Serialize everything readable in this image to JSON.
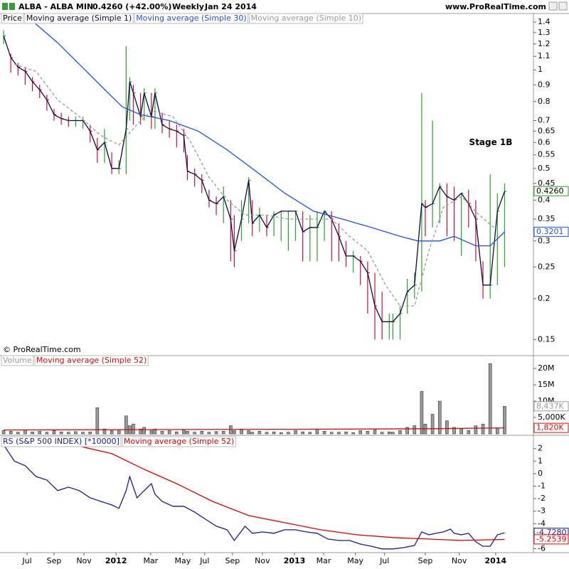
{
  "header": {
    "title": "ALBA - ALBA MIN",
    "quote": "0.4260 (+42.00%)",
    "period": "Weekly",
    "date": "Jan 24 2014",
    "site": "www.ProRealTime.com"
  },
  "copyright": "© ProRealTime.com",
  "chart_data": [
    {
      "type": "ohlc",
      "log_scale": true,
      "annotation": "Stage 1B",
      "up_color": "#2e9e2e",
      "down_color": "#c0103a",
      "ylim": [
        0.138,
        1.45
      ],
      "yticks": [
        0.15,
        0.2,
        0.25,
        0.3,
        0.35,
        0.4,
        0.45,
        0.5,
        0.55,
        0.6,
        0.65,
        0.7,
        0.8,
        0.9,
        1,
        1.1,
        1.2,
        1.3,
        1.4
      ],
      "series": [
        {
          "name": "Price",
          "color": "#000000",
          "last_label": "0.4260",
          "x": [
            0,
            2,
            4,
            6,
            8,
            10,
            12,
            14,
            16,
            18,
            20,
            22,
            24,
            26,
            28,
            30,
            32,
            34,
            35,
            36,
            38,
            39,
            41,
            42,
            44,
            46,
            48,
            50,
            51,
            53,
            55,
            57,
            59,
            61,
            63,
            64,
            66,
            68,
            69,
            71,
            73,
            75,
            77,
            79,
            81,
            83,
            85,
            87,
            89,
            91,
            93,
            95,
            97,
            99,
            101,
            103,
            105,
            107,
            108,
            110,
            112,
            114,
            116,
            117,
            119,
            121,
            123,
            125,
            127,
            129,
            131,
            133,
            135,
            137,
            139
          ],
          "high": [
            1.32,
            1.12,
            1.05,
            1.02,
            0.95,
            0.9,
            0.84,
            0.76,
            0.74,
            0.72,
            0.72,
            0.72,
            0.68,
            0.62,
            0.66,
            0.56,
            0.53,
            1.18,
            0.95,
            0.9,
            0.85,
            0.88,
            0.85,
            0.88,
            0.74,
            0.7,
            0.68,
            0.66,
            0.55,
            0.5,
            0.48,
            0.43,
            0.41,
            0.44,
            0.4,
            0.36,
            0.4,
            0.47,
            0.4,
            0.38,
            0.36,
            0.37,
            0.37,
            0.37,
            0.37,
            0.37,
            0.36,
            0.37,
            0.37,
            0.37,
            0.34,
            0.3,
            0.28,
            0.27,
            0.26,
            0.24,
            0.21,
            0.18,
            0.18,
            0.19,
            0.23,
            0.24,
            0.85,
            0.4,
            0.7,
            0.45,
            0.45,
            0.44,
            0.42,
            0.43,
            0.4,
            0.26,
            0.48,
            0.42,
            0.45
          ],
          "low": [
            1.2,
            0.98,
            0.96,
            0.9,
            0.86,
            0.82,
            0.75,
            0.7,
            0.68,
            0.67,
            0.67,
            0.66,
            0.6,
            0.52,
            0.52,
            0.48,
            0.48,
            0.48,
            0.7,
            0.68,
            0.68,
            0.7,
            0.66,
            0.66,
            0.64,
            0.62,
            0.58,
            0.56,
            0.46,
            0.44,
            0.42,
            0.38,
            0.36,
            0.34,
            0.26,
            0.25,
            0.3,
            0.34,
            0.31,
            0.32,
            0.31,
            0.31,
            0.3,
            0.28,
            0.3,
            0.26,
            0.26,
            0.26,
            0.3,
            0.26,
            0.26,
            0.25,
            0.24,
            0.22,
            0.18,
            0.15,
            0.15,
            0.15,
            0.15,
            0.15,
            0.18,
            0.2,
            0.21,
            0.31,
            0.33,
            0.34,
            0.31,
            0.3,
            0.27,
            0.33,
            0.26,
            0.2,
            0.2,
            0.22,
            0.25
          ],
          "values": [
            1.27,
            1.09,
            1.02,
            0.99,
            0.92,
            0.87,
            0.81,
            0.73,
            0.71,
            0.7,
            0.7,
            0.7,
            0.65,
            0.57,
            0.6,
            0.5,
            0.5,
            0.66,
            0.92,
            0.85,
            0.72,
            0.85,
            0.72,
            0.85,
            0.68,
            0.66,
            0.65,
            0.63,
            0.49,
            0.48,
            0.46,
            0.4,
            0.39,
            0.41,
            0.35,
            0.28,
            0.35,
            0.46,
            0.34,
            0.36,
            0.33,
            0.36,
            0.37,
            0.37,
            0.37,
            0.32,
            0.33,
            0.33,
            0.37,
            0.35,
            0.31,
            0.27,
            0.27,
            0.26,
            0.24,
            0.19,
            0.17,
            0.17,
            0.17,
            0.18,
            0.21,
            0.22,
            0.39,
            0.38,
            0.39,
            0.44,
            0.41,
            0.4,
            0.42,
            0.39,
            0.35,
            0.22,
            0.22,
            0.37,
            0.426
          ]
        },
        {
          "name": "Moving average (Simple 1)",
          "color": "#0a0a40"
        },
        {
          "name": "Moving average (Simple 30)",
          "color": "#2150e0",
          "last_label": "0.3201",
          "x": [
            8,
            15,
            23,
            29,
            33,
            38,
            46,
            54,
            62,
            70,
            78,
            86,
            94,
            102,
            110,
            115,
            121,
            125,
            131,
            135,
            139
          ],
          "values": [
            1.41,
            1.21,
            0.99,
            0.85,
            0.77,
            0.73,
            0.7,
            0.65,
            0.57,
            0.49,
            0.42,
            0.37,
            0.35,
            0.33,
            0.31,
            0.3,
            0.3,
            0.31,
            0.29,
            0.29,
            0.3201
          ]
        },
        {
          "name": "Moving average (Simple 10)",
          "color": "#9a9a9a",
          "dashed": true,
          "x": [
            3,
            9,
            15,
            21,
            27,
            32,
            37,
            41,
            47,
            52,
            57,
            62,
            67,
            73,
            79,
            85,
            91,
            96,
            101,
            106,
            110,
            114,
            118,
            122,
            127,
            132,
            136
          ],
          "values": [
            1.04,
            0.99,
            0.81,
            0.72,
            0.63,
            0.59,
            0.68,
            0.75,
            0.72,
            0.6,
            0.47,
            0.4,
            0.36,
            0.36,
            0.35,
            0.35,
            0.35,
            0.31,
            0.28,
            0.22,
            0.19,
            0.19,
            0.28,
            0.38,
            0.41,
            0.36,
            0.33
          ]
        }
      ]
    },
    {
      "type": "bar",
      "ylim": [
        0,
        23300000
      ],
      "yticks": [
        {
          "value": 5000000,
          "label": "5,000K"
        },
        {
          "value": 10000000,
          "label": "10M"
        },
        {
          "value": 15000000,
          "label": "15M"
        },
        {
          "value": 20000000,
          "label": "20M"
        }
      ],
      "series": [
        {
          "name": "Volume",
          "color": "#9a9a9a",
          "last_label": "8,437K",
          "values": [
            1000000,
            800000,
            500000,
            1200000,
            600000,
            800000,
            500000,
            1000000,
            600000,
            500000,
            700000,
            500000,
            600000,
            8000000,
            1500000,
            1000000,
            1200000,
            5500000,
            2500000,
            3000000,
            1500000,
            2000000,
            1000000,
            1500000,
            800000,
            1000000,
            600000,
            1200000,
            800000,
            500000,
            800000,
            500000,
            700000,
            800000,
            2500000,
            1000000,
            1500000,
            1000000,
            500000,
            800000,
            500000,
            600000,
            400000,
            500000,
            1000000,
            600000,
            500000,
            1500000,
            800000,
            500000,
            500000,
            600000,
            400000,
            1000000,
            800000,
            1200000,
            500000,
            600000,
            500000,
            1000000,
            2000000,
            2500000,
            13000000,
            3000000,
            6000000,
            10000000,
            4000000,
            2000000,
            1500000,
            1000000,
            2500000,
            3000000,
            21500000,
            1800000,
            8437000
          ]
        },
        {
          "name": "Moving average (Simple 52)",
          "color": "#d01010",
          "last_label": "1,820K",
          "x": [
            0,
            40,
            80,
            120,
            139
          ],
          "values": [
            1200000,
            1300000,
            1400000,
            1600000,
            1820000
          ]
        }
      ]
    },
    {
      "type": "line",
      "ylim": [
        -6.2,
        2.95
      ],
      "yticks": [
        2,
        1,
        0,
        -1,
        -2,
        -3,
        -4,
        -5,
        -6
      ],
      "xlim": [
        -1,
        147
      ],
      "xticks": [
        {
          "value": 6.5,
          "label": "Jul"
        },
        {
          "value": 14,
          "label": "Sep"
        },
        {
          "value": 22.3,
          "label": "Nov"
        },
        {
          "value": 31.2,
          "label": "2012"
        },
        {
          "value": 40.8,
          "label": "Mar"
        },
        {
          "value": 49.7,
          "label": "May"
        },
        {
          "value": 55.8,
          "label": "Jul"
        },
        {
          "value": 63.5,
          "label": "Sep"
        },
        {
          "value": 71.8,
          "label": "Nov"
        },
        {
          "value": 80.7,
          "label": "2013"
        },
        {
          "value": 88.8,
          "label": "Mar"
        },
        {
          "value": 97.6,
          "label": "May"
        },
        {
          "value": 105.7,
          "label": "Jul"
        },
        {
          "value": 117,
          "label": "Sep"
        },
        {
          "value": 126.4,
          "label": "Nov"
        },
        {
          "value": 136.5,
          "label": "2014"
        }
      ],
      "series": [
        {
          "name": "RS (S&P 500 INDEX) [*10000]",
          "color": "#1a1a8c",
          "last_label": "-4.7280",
          "x": [
            0,
            3,
            6,
            9,
            12,
            15,
            18,
            21,
            24,
            27,
            30,
            32,
            34,
            35,
            37,
            39,
            41,
            42,
            44,
            47,
            50,
            53,
            56,
            59,
            62,
            64,
            67,
            69,
            72,
            75,
            78,
            81,
            84,
            87,
            90,
            93,
            96,
            99,
            102,
            105,
            108,
            111,
            114,
            116,
            118,
            120,
            122,
            124,
            125,
            127,
            129,
            131,
            133,
            135,
            137,
            139
          ],
          "values": [
            2.3,
            1.0,
            0.63,
            -0.23,
            -0.51,
            -1.36,
            -1.08,
            -1.36,
            -1.93,
            -2.22,
            -2.5,
            -2.78,
            -1.36,
            -0.23,
            -1.93,
            -1.36,
            -0.8,
            -1.65,
            -2.22,
            -2.61,
            -2.61,
            -3.07,
            -3.64,
            -4.2,
            -4.49,
            -5.34,
            -4.2,
            -4.77,
            -4.66,
            -4.77,
            -4.49,
            -4.49,
            -4.66,
            -4.77,
            -5.23,
            -5.34,
            -5.34,
            -5.63,
            -5.8,
            -6.02,
            -6.02,
            -5.91,
            -5.74,
            -4.66,
            -4.89,
            -4.77,
            -4.66,
            -4.43,
            -4.77,
            -4.89,
            -4.77,
            -5.45,
            -5.8,
            -5.8,
            -4.89,
            -4.728
          ]
        },
        {
          "name": "Moving average (Simple 52)",
          "color": "#e00000",
          "last_label": "-5.2539",
          "x": [
            0,
            10,
            19,
            30,
            39,
            48,
            58,
            68,
            78,
            88,
            98,
            108,
            118,
            127,
            139
          ],
          "values": [
            2.5,
            2.5,
            2.33,
            1.6,
            0.34,
            -0.8,
            -2.22,
            -3.35,
            -3.92,
            -4.49,
            -4.89,
            -5.11,
            -5.23,
            -5.34,
            -5.2539
          ]
        }
      ]
    }
  ]
}
